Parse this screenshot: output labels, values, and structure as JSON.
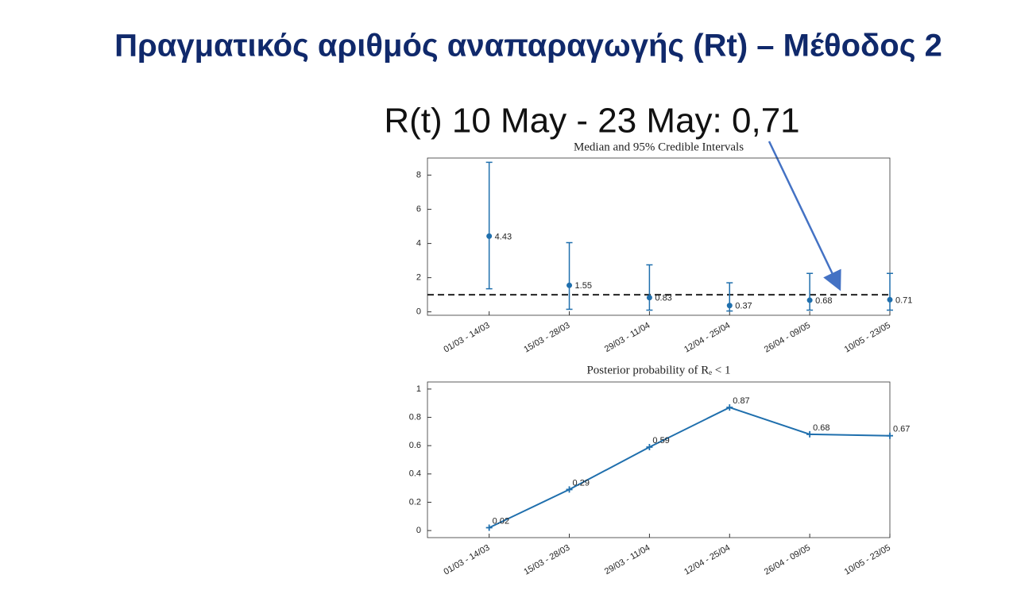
{
  "slide_title": "Πραγματικός αριθμός αναπαραγωγής (Rt) – Μέθοδος 2",
  "annotation": "R(t) 10 May - 23 May: 0,71",
  "chart_data": [
    {
      "type": "errorbar",
      "title": "Median and 95% Credible Intervals",
      "categories": [
        "01/03 - 14/03",
        "15/03 - 28/03",
        "29/03 - 11/04",
        "12/04 - 25/04",
        "26/04 - 09/05",
        "10/05 - 23/05"
      ],
      "values": [
        4.43,
        1.55,
        0.83,
        0.37,
        0.68,
        0.71
      ],
      "lower": [
        1.35,
        0.15,
        0.1,
        0.05,
        0.1,
        0.1
      ],
      "upper": [
        8.75,
        4.05,
        2.75,
        1.7,
        2.25,
        2.25
      ],
      "color": "#1f6fad",
      "hline": 1,
      "ylim": [
        -0.2,
        9
      ],
      "yticks": [
        0,
        2,
        4,
        6,
        8
      ]
    },
    {
      "type": "line",
      "title": "Posterior probability of Rₑ < 1",
      "categories": [
        "01/03 - 14/03",
        "15/03 - 28/03",
        "29/03 - 11/04",
        "12/04 - 25/04",
        "26/04 - 09/05",
        "10/05 - 23/05"
      ],
      "values": [
        0.02,
        0.29,
        0.59,
        0.87,
        0.68,
        0.67
      ],
      "color": "#1f6fad",
      "ylim": [
        -0.05,
        1.05
      ],
      "yticks": [
        0,
        0.2,
        0.4,
        0.6,
        0.8,
        1
      ]
    }
  ]
}
